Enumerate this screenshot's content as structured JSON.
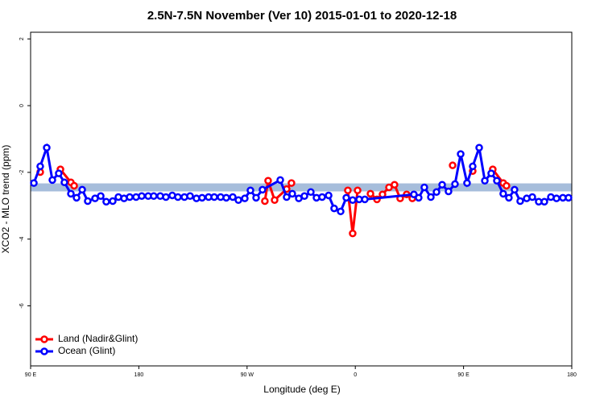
{
  "chart_data": {
    "type": "line",
    "title": "2.5N-7.5N November (Ver 10)   2015-01-01 to 2020-12-18",
    "x_label": "Longitude (deg E)",
    "y_label": "XCO2 - MLO trend (ppm)",
    "xlim": [
      90,
      540
    ],
    "ylim": [
      -7.8,
      2.2
    ],
    "xticks": [
      {
        "value": 90,
        "label": "90 E"
      },
      180,
      {
        "value": 270,
        "label": "90 W"
      },
      {
        "value": 360,
        "label": "0"
      },
      {
        "value": 450,
        "label": "90 E"
      },
      {
        "value": 540,
        "label": "180"
      }
    ],
    "yticks": [
      2,
      0,
      -2,
      -4,
      -6
    ],
    "band": [
      -2.57,
      -2.33
    ],
    "band_color": "#a6bddb",
    "legend": "bottomleft",
    "series": [
      {
        "name": "Land (Nadir&Glint)",
        "color": "#ff0000",
        "x": [
          98.0,
          106,
          114.8,
          123.5,
          126.2,
          200,
          284.8,
          287.5,
          292.9,
          302.9,
          306.9,
          330,
          353.8,
          357.8,
          361.9,
          367,
          372.6,
          378.0,
          382.6,
          388.0,
          392.6,
          397.3,
          402.7,
          407.4,
          420,
          440.9,
          450,
          457.6,
          466,
          474.3,
          483.0,
          485.7
        ],
        "values": [
          -1.99,
          null,
          -1.91,
          -2.3,
          -2.4,
          null,
          -2.86,
          -2.25,
          -2.83,
          -2.5,
          -2.32,
          null,
          -2.54,
          -3.83,
          -2.54,
          null,
          -2.64,
          -2.81,
          -2.66,
          -2.45,
          -2.37,
          -2.78,
          -2.66,
          -2.78,
          null,
          -1.79,
          null,
          -1.96,
          null,
          -1.91,
          -2.32,
          -2.4
        ]
      },
      {
        "name": "Ocean (Glint)",
        "color": "#0000ff",
        "x": [
          92.7,
          98.0,
          103.4,
          108.1,
          113.4,
          118.1,
          123.5,
          128.2,
          132.9,
          137.5,
          143.6,
          148.3,
          152.9,
          158.3,
          163.0,
          167.7,
          172.4,
          177.7,
          182.4,
          187.8,
          192.4,
          197.8,
          202.5,
          207.8,
          212.5,
          217.9,
          222.6,
          227.9,
          232.6,
          238.0,
          242.7,
          248.0,
          252.7,
          258.1,
          262.8,
          268.1,
          272.8,
          277.5,
          282.8,
          297.6,
          302.9,
          307.6,
          313.0,
          317.7,
          323.0,
          327.7,
          332.4,
          337.8,
          342.4,
          347.8,
          352.5,
          357.8,
          363.2,
          367.9,
          408.7,
          412.7,
          417.4,
          422.8,
          427.5,
          432.2,
          437.5,
          442.9,
          447.6,
          452.9,
          457.6,
          463.0,
          467.7,
          473.0,
          477.7,
          483.0,
          487.7,
          492.4,
          497.1,
          502.5,
          507.2,
          512.5,
          517.2,
          522.6,
          527.3,
          532.6,
          537.3
        ],
        "values": [
          -2.32,
          -1.82,
          -1.26,
          -2.23,
          -2.03,
          -2.3,
          -2.64,
          -2.76,
          -2.52,
          -2.86,
          -2.78,
          -2.71,
          -2.88,
          -2.86,
          -2.74,
          -2.78,
          -2.74,
          -2.74,
          -2.71,
          -2.71,
          -2.71,
          -2.71,
          -2.74,
          -2.69,
          -2.74,
          -2.74,
          -2.71,
          -2.78,
          -2.76,
          -2.74,
          -2.74,
          -2.74,
          -2.76,
          -2.74,
          -2.83,
          -2.78,
          -2.54,
          -2.76,
          -2.52,
          -2.23,
          -2.74,
          -2.64,
          -2.78,
          -2.71,
          -2.59,
          -2.76,
          -2.74,
          -2.69,
          -3.08,
          -3.17,
          -2.76,
          -2.83,
          -2.81,
          -2.81,
          -2.66,
          -2.76,
          -2.45,
          -2.74,
          -2.59,
          -2.37,
          -2.57,
          -2.35,
          -1.45,
          -2.32,
          -1.82,
          -1.26,
          -2.25,
          -2.03,
          -2.25,
          -2.64,
          -2.76,
          -2.52,
          -2.86,
          -2.78,
          -2.74,
          -2.88,
          -2.88,
          -2.74,
          -2.78,
          -2.76,
          -2.76
        ]
      }
    ]
  }
}
